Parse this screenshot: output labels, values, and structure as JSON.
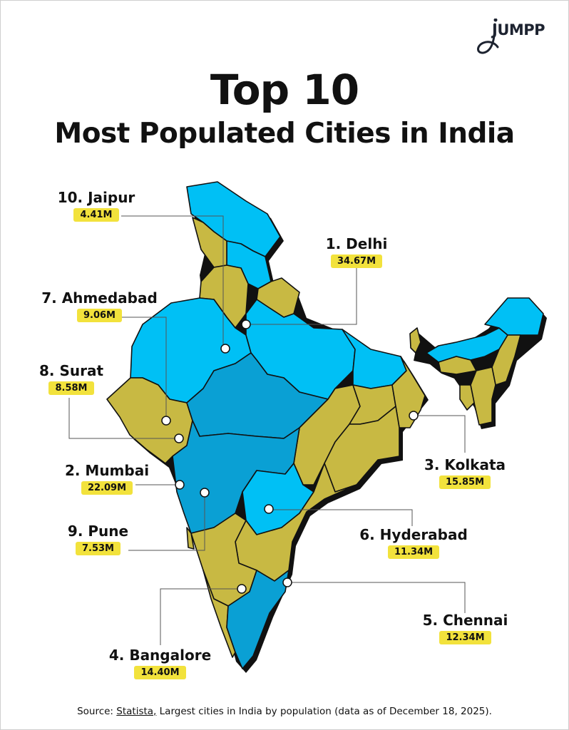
{
  "brand": {
    "logo_text": "JUMPP"
  },
  "title": {
    "line1": "Top 10",
    "line2": "Most Populated Cities in India"
  },
  "cities": [
    {
      "rank_name": "1. Delhi",
      "population": "34.67M"
    },
    {
      "rank_name": "2. Mumbai",
      "population": "22.09M"
    },
    {
      "rank_name": "3. Kolkata",
      "population": "15.85M"
    },
    {
      "rank_name": "4. Bangalore",
      "population": "14.40M"
    },
    {
      "rank_name": "5. Chennai",
      "population": "12.34M"
    },
    {
      "rank_name": "6. Hyderabad",
      "population": "11.34M"
    },
    {
      "rank_name": "7. Ahmedabad",
      "population": "9.06M"
    },
    {
      "rank_name": "8. Surat",
      "population": "8.58M"
    },
    {
      "rank_name": "9. Pune",
      "population": "7.53M"
    },
    {
      "rank_name": "10. Jaipur",
      "population": "4.41M"
    }
  ],
  "source": {
    "prefix": "Source: ",
    "link": "Statista,",
    "text": " Largest cities in India by population (data as of December 18, 2025)."
  },
  "colors": {
    "region_a": "#00c0f5",
    "region_b": "#c8b943",
    "region_c": "#0aa0d4",
    "badge": "#f2e23c"
  }
}
